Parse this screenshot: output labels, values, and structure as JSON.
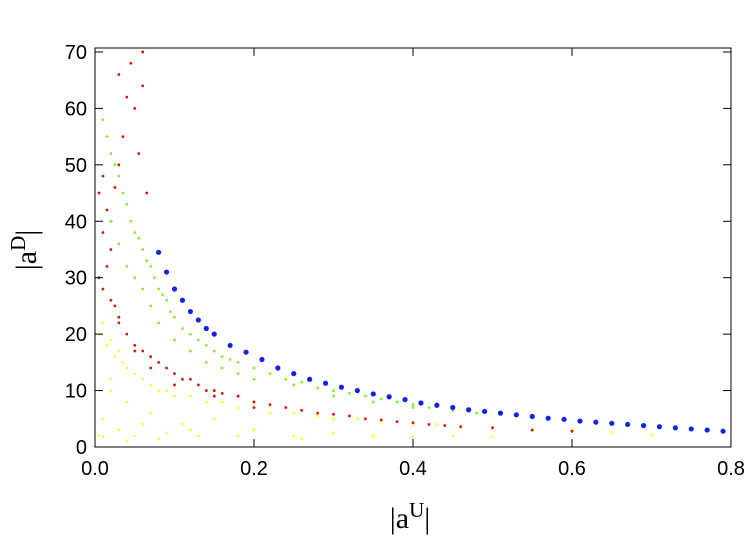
{
  "chart_data": {
    "type": "scatter",
    "xlabel": [
      "|a",
      "U",
      "|"
    ],
    "ylabel": [
      "|a",
      "D",
      "|"
    ],
    "xlim": [
      0,
      0.8
    ],
    "ylim": [
      0,
      70.7
    ],
    "xticks": [
      {
        "value": 0,
        "label": "0.0"
      },
      0.2,
      0.4,
      0.6,
      0.8
    ],
    "yticks": [
      0,
      10,
      20,
      30,
      40,
      50,
      60,
      70
    ],
    "series": [
      {
        "color": "#ffff33",
        "x": [
          0.005,
          0.01,
          0.015,
          0.02,
          0.025,
          0.03,
          0.035,
          0.04,
          0.05,
          0.06,
          0.07,
          0.08,
          0.09,
          0.1,
          0.12,
          0.14,
          0.16,
          0.18,
          0.2,
          0.22,
          0.25,
          0.28,
          0.3,
          0.33,
          0.36,
          0.4,
          0.43,
          0.46,
          0.5,
          0.55,
          0.6,
          0.65,
          0.7,
          0.005,
          0.01,
          0.02,
          0.03,
          0.04,
          0.05,
          0.07,
          0.09,
          0.11,
          0.13,
          0.15,
          0.2,
          0.25,
          0.3,
          0.35,
          0.4,
          0.5,
          0.01,
          0.02,
          0.04,
          0.06,
          0.08,
          0.12,
          0.18,
          0.26,
          0.35,
          0.45
        ],
        "values": [
          20,
          22,
          18,
          19,
          16,
          17,
          15,
          14,
          13,
          12,
          11,
          10,
          10,
          9,
          9,
          8,
          8,
          7,
          7,
          6,
          6,
          5.5,
          5,
          5,
          4.5,
          4,
          4,
          3.5,
          3.5,
          3,
          3,
          2.5,
          2.2,
          2,
          5,
          10,
          3,
          8,
          2,
          6,
          2.5,
          4,
          2,
          5,
          3,
          2,
          2.5,
          2,
          1.8,
          1.8,
          1.8,
          12,
          1,
          4,
          1.5,
          3,
          2,
          1.5,
          1.8,
          2
        ]
      },
      {
        "color": "#dd1100",
        "x": [
          0.005,
          0.01,
          0.01,
          0.015,
          0.02,
          0.02,
          0.025,
          0.03,
          0.03,
          0.035,
          0.04,
          0.045,
          0.05,
          0.055,
          0.06,
          0.06,
          0.065,
          0.005,
          0.01,
          0.015,
          0.02,
          0.025,
          0.03,
          0.04,
          0.05,
          0.06,
          0.07,
          0.08,
          0.09,
          0.1,
          0.11,
          0.12,
          0.13,
          0.14,
          0.15,
          0.16,
          0.18,
          0.2,
          0.22,
          0.24,
          0.26,
          0.28,
          0.3,
          0.32,
          0.34,
          0.36,
          0.38,
          0.4,
          0.42,
          0.44,
          0.46,
          0.5,
          0.55,
          0.6,
          0.03,
          0.05,
          0.07,
          0.1,
          0.15,
          0.2
        ],
        "values": [
          45,
          48,
          38,
          42,
          40,
          35,
          46,
          50,
          66,
          55,
          62,
          68,
          60,
          52,
          70,
          64,
          45,
          30,
          28,
          32,
          26,
          25,
          23,
          20,
          18,
          17,
          16,
          15,
          14,
          13,
          12,
          12,
          11,
          10,
          10,
          9.5,
          9,
          8,
          7.5,
          7,
          6.5,
          6,
          5.8,
          5.5,
          5,
          4.8,
          4.5,
          4.3,
          4,
          3.8,
          3.6,
          3.4,
          3,
          2.8,
          22,
          17,
          14,
          11,
          9,
          7
        ]
      },
      {
        "color": "#88ee33",
        "x": [
          0.01,
          0.015,
          0.02,
          0.025,
          0.03,
          0.035,
          0.04,
          0.045,
          0.05,
          0.055,
          0.06,
          0.065,
          0.07,
          0.075,
          0.08,
          0.085,
          0.09,
          0.095,
          0.1,
          0.11,
          0.12,
          0.13,
          0.14,
          0.15,
          0.16,
          0.17,
          0.18,
          0.2,
          0.22,
          0.24,
          0.26,
          0.28,
          0.3,
          0.32,
          0.34,
          0.36,
          0.38,
          0.4,
          0.42,
          0.45,
          0.48,
          0.02,
          0.03,
          0.04,
          0.05,
          0.06,
          0.07,
          0.08,
          0.1,
          0.12,
          0.14,
          0.16,
          0.18,
          0.2,
          0.25,
          0.3,
          0.35,
          0.4
        ],
        "values": [
          58,
          55,
          52,
          50,
          48,
          45,
          43,
          40,
          38,
          37,
          35,
          33,
          32,
          30,
          28,
          27,
          26,
          24,
          23,
          21,
          20,
          19,
          18,
          17,
          16,
          15.5,
          15,
          14,
          13,
          12,
          11.5,
          10.5,
          10,
          9.5,
          9,
          8.5,
          8,
          7.5,
          7,
          6.5,
          6,
          40,
          36,
          32,
          30,
          28,
          25,
          22,
          19,
          17,
          15,
          14,
          13,
          12,
          11,
          9,
          8,
          7
        ]
      },
      {
        "color": "#1122ee",
        "x": [
          0.08,
          0.09,
          0.1,
          0.11,
          0.12,
          0.13,
          0.14,
          0.15,
          0.17,
          0.19,
          0.21,
          0.23,
          0.25,
          0.27,
          0.29,
          0.31,
          0.33,
          0.35,
          0.37,
          0.39,
          0.41,
          0.43,
          0.45,
          0.47,
          0.49,
          0.51,
          0.53,
          0.55,
          0.57,
          0.59,
          0.61,
          0.63,
          0.65,
          0.67,
          0.69,
          0.71,
          0.73,
          0.75,
          0.77,
          0.79
        ],
        "values": [
          34.5,
          31,
          28,
          26,
          24,
          22.5,
          21,
          20,
          18,
          16.8,
          15.5,
          14,
          13,
          12,
          11.3,
          10.6,
          10,
          9.4,
          8.9,
          8.4,
          7.8,
          7.4,
          7.0,
          6.6,
          6.3,
          6.0,
          5.7,
          5.4,
          5.1,
          4.9,
          4.6,
          4.4,
          4.2,
          4.0,
          3.8,
          3.6,
          3.4,
          3.2,
          3.0,
          2.8
        ]
      }
    ]
  }
}
